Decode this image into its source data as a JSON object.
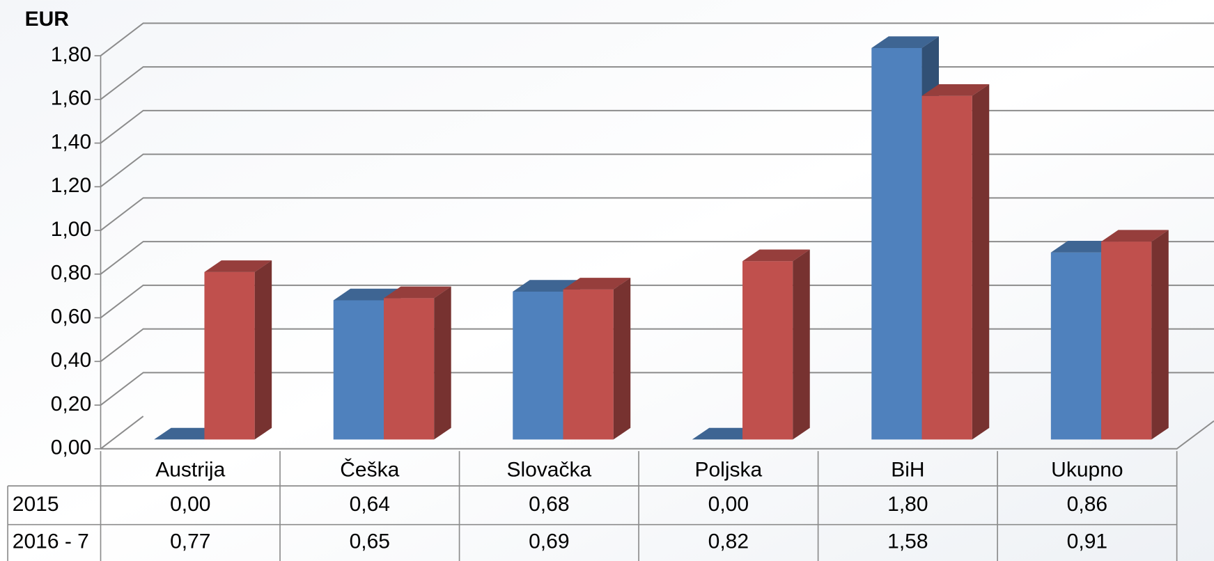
{
  "chart_data": {
    "type": "bar3d",
    "y_label": "EUR",
    "categories": [
      "Austrija",
      "Češka",
      "Slovačka",
      "Poljska",
      "BiH",
      "Ukupno"
    ],
    "series": [
      {
        "name": "2015",
        "color": "#4f81bd",
        "values": [
          0,
          0.64,
          0.68,
          0,
          1.8,
          0.86
        ],
        "value_labels": [
          "0,00",
          "0,64",
          "0,68",
          "0,00",
          "1,80",
          "0,86"
        ]
      },
      {
        "name": "2016 - 7",
        "color": "#c0504d",
        "values": [
          0.77,
          0.65,
          0.69,
          0.82,
          1.58,
          0.91
        ],
        "value_labels": [
          "0,77",
          "0,65",
          "0,69",
          "0,82",
          "1,58",
          "0,91"
        ]
      }
    ],
    "ylim": [
      0,
      1.8
    ],
    "yticks": [
      {
        "value": 0,
        "label": "0,00"
      },
      {
        "value": 0.2,
        "label": "0,20"
      },
      {
        "value": 0.4,
        "label": "0,40"
      },
      {
        "value": 0.6,
        "label": "0,60"
      },
      {
        "value": 0.8,
        "label": "0,80"
      },
      {
        "value": 1.0,
        "label": "1,00"
      },
      {
        "value": 1.2,
        "label": "1,20"
      },
      {
        "value": 1.4,
        "label": "1,40"
      },
      {
        "value": 1.6,
        "label": "1,60"
      },
      {
        "value": 1.8,
        "label": "1,80"
      }
    ],
    "grid": true
  }
}
